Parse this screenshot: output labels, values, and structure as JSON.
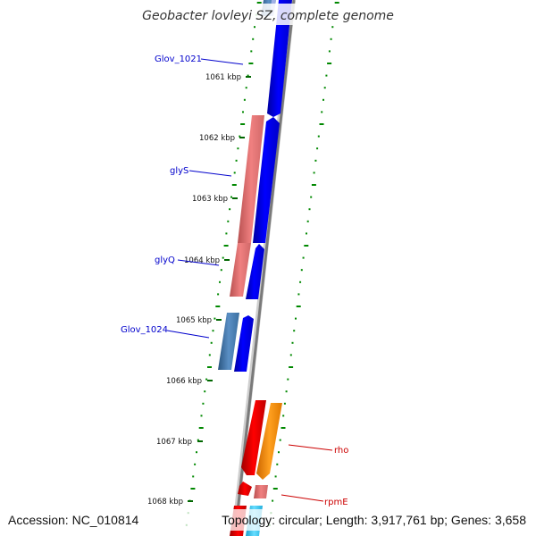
{
  "map": {
    "title": "Geobacter lovleyi SZ, complete genome",
    "accession": "Accession: NC_010814",
    "topology": "Topology: circular; Length: 3,917,761 bp; Genes: 3,658"
  },
  "kbp_ticks": [
    "1061 kbp",
    "1062 kbp",
    "1063 kbp",
    "1064 kbp",
    "1065 kbp",
    "1066 kbp",
    "1067 kbp",
    "1068 kbp"
  ],
  "gene_labels": [
    {
      "name": "Glov_1021",
      "color": "#0000cc"
    },
    {
      "name": "glyS",
      "color": "#0000cc"
    },
    {
      "name": "glyQ",
      "color": "#0000cc"
    },
    {
      "name": "Glov_1024",
      "color": "#0000cc"
    },
    {
      "name": "rho",
      "color": "#cc0000"
    },
    {
      "name": "rpmE",
      "color": "#cc0000"
    }
  ],
  "colors": {
    "forward_cds": "#0000ee",
    "reverse_cds": "#f08080",
    "steel_feature": "#4a7fb5",
    "red_cds": "#ee0000",
    "orange_cds": "#ff8c00",
    "cyan_feature": "#33ccee",
    "backbone": "#888888",
    "tick_marks": "#007700",
    "forward_label": "#0000cc",
    "reverse_label": "#cc0000"
  }
}
